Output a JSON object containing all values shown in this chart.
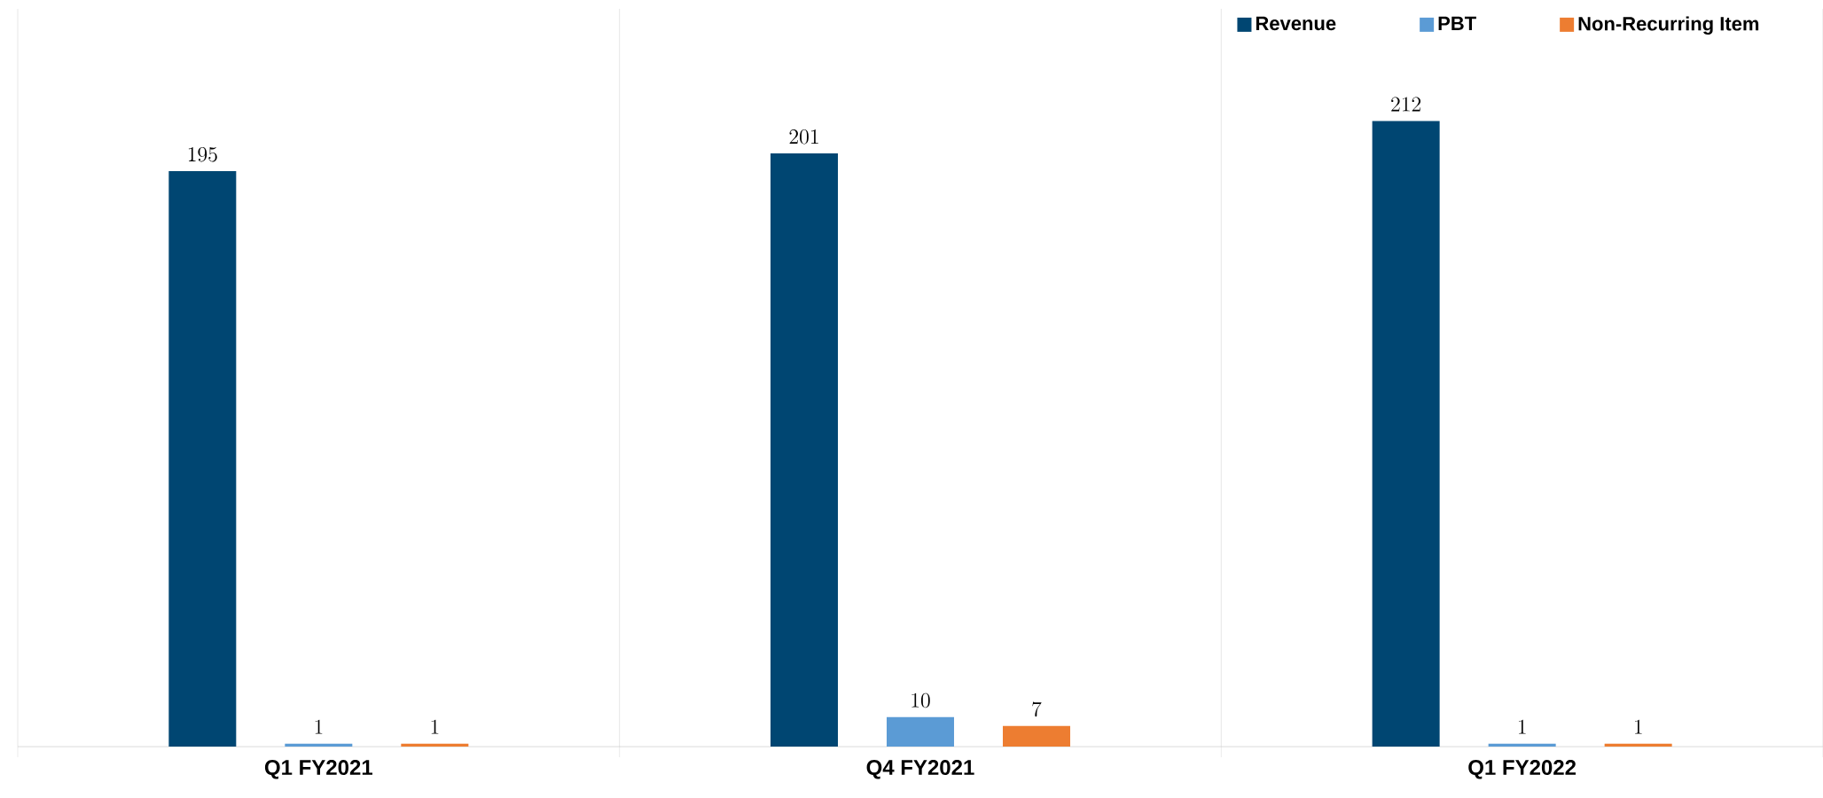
{
  "chart_data": {
    "type": "bar",
    "categories": [
      "Q1 FY2021",
      "Q4 FY2021",
      "Q1 FY2022"
    ],
    "series": [
      {
        "name": "Revenue",
        "color": "#004672",
        "values": [
          195,
          201,
          212
        ]
      },
      {
        "name": "PBT",
        "color": "#5b9bd5",
        "values": [
          1,
          10,
          1
        ]
      },
      {
        "name": "Non-Recurring Item",
        "color": "#ed7d31",
        "values": [
          1,
          7,
          1
        ]
      }
    ],
    "ylim": [
      0,
      250
    ],
    "data_labels": true,
    "legend": "top right",
    "grid": "x",
    "tick_labels": "x"
  }
}
